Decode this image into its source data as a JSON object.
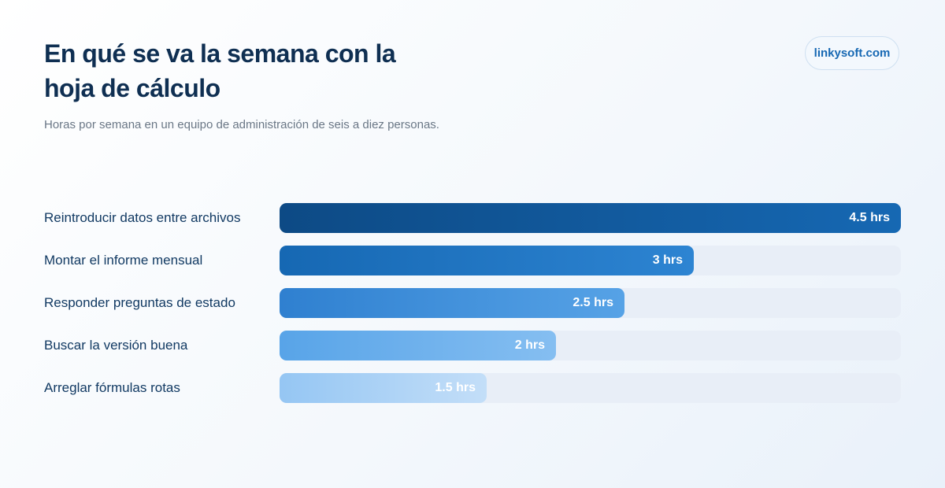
{
  "header": {
    "title": "En qué se va la semana con la hoja de cálculo",
    "subtitle": "Horas por semana en un equipo de administración de seis a diez personas.",
    "brand": "linkysoft.com"
  },
  "chart_data": {
    "type": "bar",
    "orientation": "horizontal",
    "title": "En qué se va la semana con la hoja de cálculo",
    "subtitle": "Horas por semana en un equipo de administración de seis a diez personas.",
    "categories": [
      "Reintroducir datos entre archivos",
      "Montar el informe mensual",
      "Responder preguntas de estado",
      "Buscar la versión buena",
      "Arreglar fórmulas rotas"
    ],
    "values": [
      4.5,
      3,
      2.5,
      2,
      1.5
    ],
    "value_labels": [
      "4.5 hrs",
      "3 hrs",
      "2.5 hrs",
      "2 hrs",
      "1.5 hrs"
    ],
    "xlim": [
      0,
      4.5
    ],
    "grid": false,
    "colors": [
      [
        "#0d4a85",
        "#1668b3"
      ],
      [
        "#1668b3",
        "#2d84d2"
      ],
      [
        "#2f80d0",
        "#56a2e6"
      ],
      [
        "#58a4e8",
        "#85bef1"
      ],
      [
        "#95c6f3",
        "#c3def8"
      ]
    ],
    "track_color": "#e8eef7"
  }
}
